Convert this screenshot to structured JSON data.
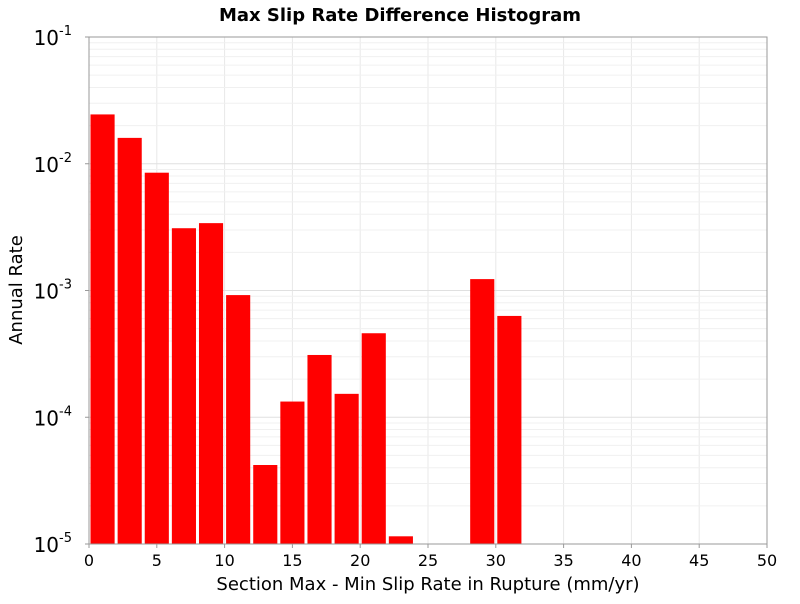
{
  "chart_data": {
    "type": "bar",
    "title": "Max Slip Rate Difference Histogram",
    "xlabel": "Section Max - Min Slip Rate in Rupture (mm/yr)",
    "ylabel": "Annual Rate",
    "xlim": [
      0,
      50
    ],
    "ylim": [
      1e-05,
      0.1
    ],
    "yscale": "log",
    "grid": true,
    "bar_color": "#ff0000",
    "bin_width": 2,
    "x": [
      1,
      3,
      5,
      7,
      9,
      11,
      13,
      15,
      17,
      19,
      21,
      23,
      29,
      31
    ],
    "values": [
      0.0245,
      0.016,
      0.0085,
      0.0031,
      0.0034,
      0.00092,
      4.2e-05,
      0.000133,
      0.00031,
      0.000153,
      0.00046,
      1.15e-05,
      0.00123,
      0.00063
    ],
    "x_ticks": [
      0,
      5,
      10,
      15,
      20,
      25,
      30,
      35,
      40,
      45,
      50
    ],
    "y_ticks": [
      {
        "base": "10",
        "exp": "-5"
      },
      {
        "base": "10",
        "exp": "-4"
      },
      {
        "base": "10",
        "exp": "-3"
      },
      {
        "base": "10",
        "exp": "-2"
      },
      {
        "base": "10",
        "exp": "-1"
      }
    ]
  }
}
